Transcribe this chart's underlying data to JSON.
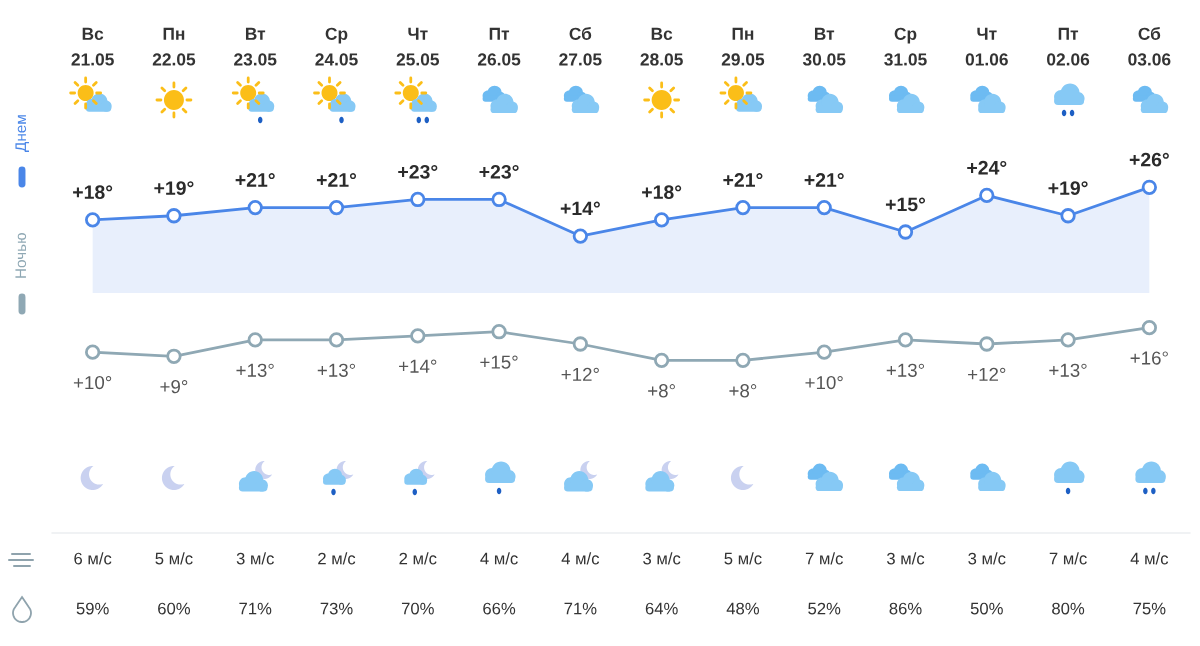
{
  "chart_data": [
    {
      "type": "area",
      "categories": [
        "Вс\n21.05",
        "Пн\n22.05",
        "Вт\n23.05",
        "Ср\n24.05",
        "Чт\n25.05",
        "Пт\n26.05",
        "Сб\n27.05",
        "Вс\n28.05",
        "Пн\n29.05",
        "Вт\n30.05",
        "Ср\n31.05",
        "Чт\n01.06",
        "Пт\n02.06",
        "Сб\n03.06"
      ],
      "series": [
        {
          "name": "Днем",
          "color": "#4a86e8",
          "values": [
            18,
            19,
            21,
            21,
            23,
            23,
            14,
            18,
            21,
            21,
            15,
            24,
            19,
            26
          ],
          "value_labels": [
            "+18°",
            "+19°",
            "+21°",
            "+21°",
            "+23°",
            "+23°",
            "+14°",
            "+18°",
            "+21°",
            "+21°",
            "+15°",
            "+24°",
            "+19°",
            "+26°"
          ]
        }
      ],
      "tick_labels": "x",
      "marker": "circle",
      "legend": "left"
    },
    {
      "type": "line",
      "categories": [
        null,
        null,
        null,
        null,
        null,
        null,
        null,
        null,
        null,
        null,
        null,
        null,
        null,
        null
      ],
      "series": [
        {
          "name": "Ночью",
          "color": "#8fa8b4",
          "values": [
            10,
            9,
            13,
            13,
            14,
            15,
            12,
            8,
            8,
            10,
            13,
            12,
            13,
            16
          ],
          "value_labels": [
            "+10°",
            "+9°",
            "+13°",
            "+13°",
            "+14°",
            "+15°",
            "+12°",
            "+8°",
            "+8°",
            "+10°",
            "+13°",
            "+12°",
            "+13°",
            "+16°"
          ]
        }
      ],
      "tick_labels": false,
      "marker": "circle",
      "legend": "left"
    },
    {
      "type": "other",
      "annotations": [
        "6 м/с",
        "5 м/с",
        "3 м/с",
        "2 м/с",
        "2 м/с",
        "4 м/с",
        "4 м/с",
        "3 м/с",
        "5 м/с",
        "7 м/с",
        "3 м/с",
        "3 м/с",
        "7 м/с",
        "4 м/с",
        "59%",
        "60%",
        "71%",
        "73%",
        "70%",
        "66%",
        "71%",
        "64%",
        "48%",
        "52%",
        "86%",
        "50%",
        "80%",
        "75%"
      ]
    }
  ]
}
